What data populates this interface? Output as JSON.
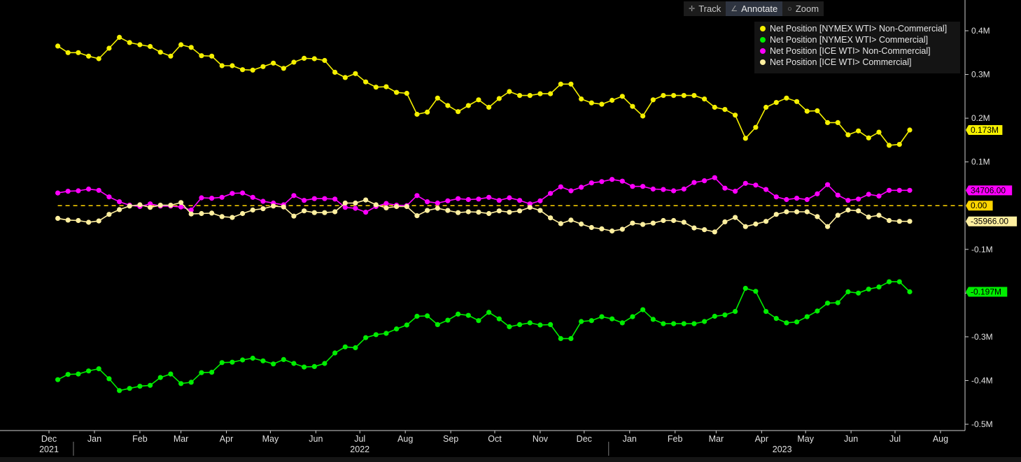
{
  "toolbar": {
    "track_label": "Track",
    "annotate_label": "Annotate",
    "zoom_label": "Zoom"
  },
  "chart_data": {
    "type": "line",
    "y_ticks": [
      {
        "v": 400000,
        "label": "0.4M"
      },
      {
        "v": 300000,
        "label": "0.3M"
      },
      {
        "v": 200000,
        "label": "0.2M"
      },
      {
        "v": 100000,
        "label": "0.1M"
      },
      {
        "v": -100000,
        "label": "-0.1M"
      },
      {
        "v": -200000,
        "label": "-0.2M"
      },
      {
        "v": -300000,
        "label": "-0.3M"
      },
      {
        "v": -400000,
        "label": "-0.4M"
      },
      {
        "v": -500000,
        "label": "-0.5M"
      }
    ],
    "ylim": [
      -500000,
      470000
    ],
    "x_start": "2021-11-30",
    "x_end": "2023-08-31",
    "month_ticks": [
      {
        "label": "Dec",
        "date": "2021-12-01"
      },
      {
        "label": "Jan",
        "date": "2022-01-01"
      },
      {
        "label": "Feb",
        "date": "2022-02-01"
      },
      {
        "label": "Mar",
        "date": "2022-03-01"
      },
      {
        "label": "Apr",
        "date": "2022-04-01"
      },
      {
        "label": "May",
        "date": "2022-05-01"
      },
      {
        "label": "Jun",
        "date": "2022-06-01"
      },
      {
        "label": "Jul",
        "date": "2022-07-01"
      },
      {
        "label": "Aug",
        "date": "2022-08-01"
      },
      {
        "label": "Sep",
        "date": "2022-09-01"
      },
      {
        "label": "Oct",
        "date": "2022-10-01"
      },
      {
        "label": "Nov",
        "date": "2022-11-01"
      },
      {
        "label": "Dec",
        "date": "2022-12-01"
      },
      {
        "label": "Jan",
        "date": "2023-01-01"
      },
      {
        "label": "Feb",
        "date": "2023-02-01"
      },
      {
        "label": "Mar",
        "date": "2023-03-01"
      },
      {
        "label": "Apr",
        "date": "2023-04-01"
      },
      {
        "label": "May",
        "date": "2023-05-01"
      },
      {
        "label": "Jun",
        "date": "2023-06-01"
      },
      {
        "label": "Jul",
        "date": "2023-07-01"
      },
      {
        "label": "Aug",
        "date": "2023-08-01"
      }
    ],
    "year_labels": [
      {
        "label": "2021",
        "date": "2021-12-01"
      },
      {
        "label": "2022",
        "date": "2022-07-01"
      },
      {
        "label": "2023",
        "date": "2023-04-15"
      }
    ],
    "year_dividers": [
      "2022-01-01",
      "2023-01-01"
    ],
    "x": [
      "2021-12-07",
      "2021-12-14",
      "2021-12-21",
      "2021-12-28",
      "2022-01-04",
      "2022-01-11",
      "2022-01-18",
      "2022-01-25",
      "2022-02-01",
      "2022-02-08",
      "2022-02-15",
      "2022-02-22",
      "2022-03-01",
      "2022-03-08",
      "2022-03-15",
      "2022-03-22",
      "2022-03-29",
      "2022-04-05",
      "2022-04-12",
      "2022-04-19",
      "2022-04-26",
      "2022-05-03",
      "2022-05-10",
      "2022-05-17",
      "2022-05-24",
      "2022-05-31",
      "2022-06-07",
      "2022-06-14",
      "2022-06-21",
      "2022-06-28",
      "2022-07-05",
      "2022-07-12",
      "2022-07-19",
      "2022-07-26",
      "2022-08-02",
      "2022-08-09",
      "2022-08-16",
      "2022-08-23",
      "2022-08-30",
      "2022-09-06",
      "2022-09-13",
      "2022-09-20",
      "2022-09-27",
      "2022-10-04",
      "2022-10-11",
      "2022-10-18",
      "2022-10-25",
      "2022-11-01",
      "2022-11-08",
      "2022-11-15",
      "2022-11-22",
      "2022-11-29",
      "2022-12-06",
      "2022-12-13",
      "2022-12-20",
      "2022-12-27",
      "2023-01-03",
      "2023-01-10",
      "2023-01-17",
      "2023-01-24",
      "2023-01-31",
      "2023-02-07",
      "2023-02-14",
      "2023-02-21",
      "2023-02-28",
      "2023-03-07",
      "2023-03-14",
      "2023-03-21",
      "2023-03-28",
      "2023-04-04",
      "2023-04-11",
      "2023-04-18",
      "2023-04-25",
      "2023-05-02",
      "2023-05-09",
      "2023-05-16",
      "2023-05-23",
      "2023-05-30",
      "2023-06-06",
      "2023-06-13",
      "2023-06-20",
      "2023-06-27",
      "2023-07-04",
      "2023-07-11"
    ],
    "series": [
      {
        "name": "Net Position [NYMEX WTI> Non-Commercial]",
        "color": "#f5f000",
        "last_label": "0.173M",
        "values": [
          365000,
          350000,
          350000,
          342000,
          336000,
          360000,
          385000,
          373000,
          368000,
          364000,
          351000,
          342000,
          368000,
          362000,
          343000,
          342000,
          320000,
          320000,
          311000,
          310000,
          318000,
          326000,
          314000,
          328000,
          337000,
          336000,
          332000,
          305000,
          293000,
          302000,
          283000,
          271000,
          272000,
          259000,
          257000,
          209000,
          214000,
          246000,
          229000,
          215000,
          229000,
          242000,
          225000,
          245000,
          261000,
          252000,
          252000,
          256000,
          256000,
          278000,
          278000,
          244000,
          235000,
          232000,
          241000,
          250000,
          227000,
          205000,
          242000,
          252000,
          252000,
          252000,
          252000,
          244000,
          225000,
          220000,
          207000,
          154000,
          179000,
          225000,
          236000,
          246000,
          238000,
          216000,
          217000,
          190000,
          190000,
          162000,
          171000,
          155000,
          168000,
          138000,
          140000,
          173000
        ]
      },
      {
        "name": "Net Position [NYMEX WTI> Commercial]",
        "color": "#00ee00",
        "last_label": "-0.197M",
        "values": [
          -398000,
          -386000,
          -385000,
          -378000,
          -373000,
          -396000,
          -423000,
          -418000,
          -413000,
          -411000,
          -393000,
          -385000,
          -407000,
          -404000,
          -382000,
          -381000,
          -359000,
          -358000,
          -353000,
          -349000,
          -355000,
          -362000,
          -352000,
          -361000,
          -369000,
          -368000,
          -361000,
          -337000,
          -323000,
          -325000,
          -302000,
          -295000,
          -292000,
          -282000,
          -273000,
          -253000,
          -252000,
          -272000,
          -262000,
          -248000,
          -251000,
          -263000,
          -244000,
          -259000,
          -277000,
          -272000,
          -268000,
          -273000,
          -272000,
          -304000,
          -304000,
          -265000,
          -263000,
          -254000,
          -259000,
          -268000,
          -254000,
          -238000,
          -260000,
          -270000,
          -270000,
          -270000,
          -270000,
          -265000,
          -253000,
          -250000,
          -242000,
          -189000,
          -196000,
          -242000,
          -258000,
          -268000,
          -266000,
          -254000,
          -241000,
          -223000,
          -222000,
          -197000,
          -200000,
          -191000,
          -186000,
          -174000,
          -174000,
          -197000
        ]
      },
      {
        "name": "Net Position [ICE WTI> Non-Commercial]",
        "color": "#ff00ff",
        "last_label": "34706.00",
        "values": [
          29000,
          33000,
          34000,
          38000,
          35000,
          20000,
          9000,
          1000,
          -2000,
          4000,
          -1000,
          -1000,
          -3000,
          -10000,
          18000,
          17000,
          19000,
          28000,
          29000,
          19000,
          10000,
          6000,
          2000,
          23000,
          12000,
          16000,
          16000,
          15000,
          -4000,
          -6000,
          -15000,
          -2000,
          5000,
          1000,
          0,
          23000,
          9000,
          6000,
          11000,
          16000,
          14000,
          15000,
          19000,
          12000,
          18000,
          12000,
          4000,
          11000,
          28000,
          43000,
          34000,
          42000,
          52000,
          55000,
          60000,
          56000,
          44000,
          44000,
          38000,
          37000,
          34000,
          38000,
          53000,
          57000,
          64000,
          40000,
          33000,
          51000,
          47000,
          37000,
          20000,
          14000,
          17000,
          14000,
          27000,
          48000,
          24000,
          12000,
          15000,
          26000,
          22000,
          35000,
          35000,
          35000
        ]
      },
      {
        "name": "Net Position [ICE WTI> Commercial]",
        "color": "#ffef9f",
        "last_label": "-35966.00",
        "values": [
          -29000,
          -33000,
          -34000,
          -38000,
          -35000,
          -20000,
          -9000,
          -1000,
          2000,
          -4000,
          1000,
          1000,
          7000,
          -19000,
          -18000,
          -17000,
          -25000,
          -27000,
          -18000,
          -10000,
          -7000,
          -1000,
          -3000,
          -24000,
          -12000,
          -16000,
          -16000,
          -14000,
          6000,
          6000,
          13000,
          2000,
          -5000,
          -2000,
          -2000,
          -23000,
          -11000,
          -6000,
          -11000,
          -16000,
          -14000,
          -15000,
          -18000,
          -12000,
          -15000,
          -12000,
          -4000,
          -11000,
          -28000,
          -41000,
          -33000,
          -42000,
          -50000,
          -53000,
          -58000,
          -54000,
          -40000,
          -43000,
          -40000,
          -34000,
          -34000,
          -38000,
          -51000,
          -55000,
          -60000,
          -37000,
          -27000,
          -48000,
          -42000,
          -36000,
          -20000,
          -14000,
          -14000,
          -14000,
          -25000,
          -48000,
          -22000,
          -10000,
          -12000,
          -26000,
          -22000,
          -34000,
          -36000,
          -36000
        ]
      }
    ],
    "zero_line": {
      "value": 0,
      "label": "0.00",
      "color": "#ffd500"
    }
  }
}
